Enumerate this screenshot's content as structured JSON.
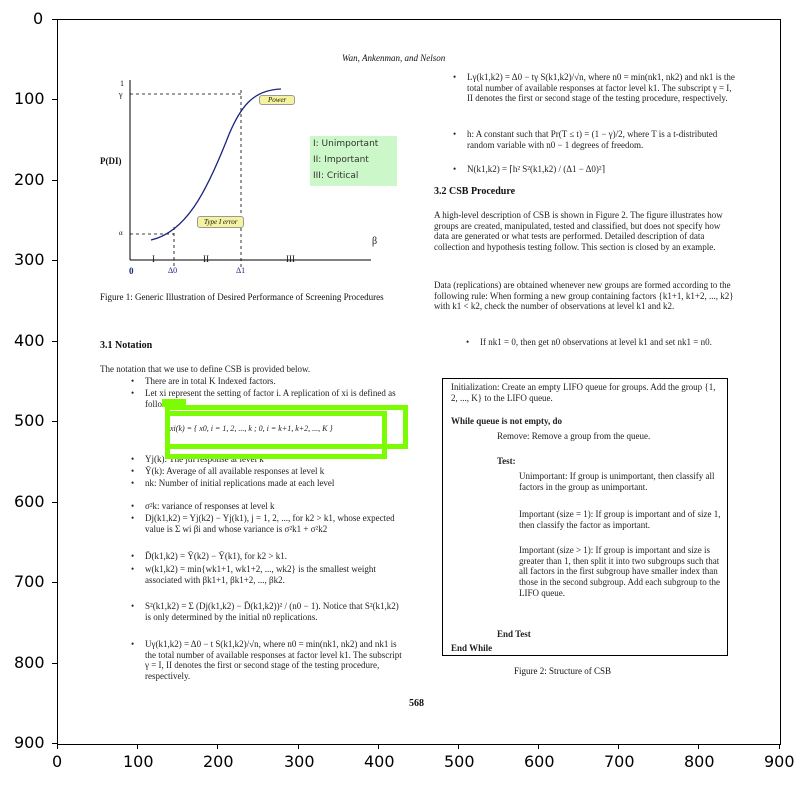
{
  "figure": {
    "running_header": "Wan, Ankenman, and Nelson",
    "page_number": "568",
    "chart_labels": {
      "y_axis": "P(DI)",
      "y_top": "1",
      "y_gamma": "γ",
      "y_alpha": "α",
      "x_axis": "β",
      "x_zero": "0",
      "delta0": "Δ0",
      "delta1": "Δ1",
      "region_I": "I",
      "region_II": "II",
      "region_III": "III",
      "power_label": "Power",
      "type1_label": "Type I error"
    },
    "legend": {
      "item1": "I: Unimportant",
      "item2": "II: Important",
      "item3": "III: Critical"
    },
    "figure1_caption": "Figure 1: Generic Illustration of Desired Performance of Screening Procedures",
    "section_31": "3.1 Notation",
    "notation_intro": "The notation that we use to define CSB is provided below.",
    "notation_items": [
      "There are in total K Indexed factors.",
      "Let xi represent the setting of factor i. A replication of xi is defined as follows:",
      "Yj(k): The jth response at level k",
      "Ȳ(k): Average of all available responses at level k",
      "nk: Number of initial replications made at each level",
      "σ²k: variance of responses at level k",
      "Dj(k1,k2) = Yj(k2) − Yj(k1), j = 1, 2, ..., for k2 > k1, whose expected value is Σ wi βi and whose variance is σ²k1 + σ²k2",
      "D̄(k1,k2) = Ȳ(k2) − Ȳ(k1), for k2 > k1.",
      "w(k1,k2) = min{wk1+1, wk1+2, ..., wk2} is the smallest weight associated with βk1+1, βk1+2, ..., βk2.",
      "S²(k1,k2) = Σ (Dj(k1,k2) − D̄(k1,k2))² / (n0 − 1). Notice that S²(k1,k2) is only determined by the initial n0 replications.",
      "Uγ(k1,k2) = Δ0 − t S(k1,k2)/√n, where n0 = min(nk1, nk2) and nk1 is the total number of available responses at factor level k1. The subscript γ = I, II denotes the first or second stage of the testing procedure, respectively."
    ],
    "equation_label": "xi(k) = { x0,  i = 1, 2, ..., k ;  0,  i = k+1, k+2, ..., K }",
    "right_items": [
      "Lγ(k1,k2) = Δ0 − tγ S(k1,k2)/√n, where n0 = min(nk1, nk2) and nk1 is the total number of available responses at factor level k1. The subscript γ = I, II denotes the first or second stage of the testing procedure, respectively.",
      "h: A constant such that Pr(T ≤ t) = (1 − γ)/2, where T is a t-distributed random variable with n0 − 1 degrees of freedom.",
      "N(k1,k2) = ⌈h² S²(k1,k2) / (Δ1 − Δ0)²⌉"
    ],
    "section_32": "3.2 CSB Procedure",
    "procedure_para1": "A high-level description of CSB is shown in Figure 2. The figure illustrates how groups are created, manipulated, tested and classified, but does not specify how data are generated or what tests are performed. Detailed description of data collection and hypothesis testing follow. This section is closed by an example.",
    "procedure_para2": "Data (replications) are obtained whenever new groups are formed according to the following rule: When forming a new group containing factors {k1+1, k1+2, ..., k2} with k1 < k2, check the number of observations at level k1 and k2.",
    "procedure_item": "If nk1 = 0, then get n0 observations at level k1 and set nk1 = n0.",
    "fig2": {
      "init": "Initialization: Create an empty LIFO queue for groups. Add the group {1, 2, ..., K} to the LIFO queue.",
      "while": "While queue is not empty, do",
      "remove": "Remove: Remove a group from the queue.",
      "test": "Test:",
      "unimportant": "Unimportant: If group is unimportant, then classify all factors in the group as unimportant.",
      "important1": "Important (size = 1): If group is important and of size 1, then classify the factor as important.",
      "important2": "Important (size > 1): If group is important and size is greater than 1, then split it into two subgroups such that all factors in the first subgroup have smaller index than those in the second subgroup. Add each subgroup to the LIFO queue.",
      "end_test": "End Test",
      "end_while": "End While",
      "caption": "Figure 2: Structure of CSB"
    }
  },
  "plot_axes": {
    "x_ticks": [
      "0",
      "100",
      "200",
      "300",
      "400",
      "500",
      "600",
      "700",
      "800",
      "900"
    ],
    "y_ticks": [
      "0",
      "100",
      "200",
      "300",
      "400",
      "500",
      "600",
      "700",
      "800",
      "900"
    ]
  },
  "colors": {
    "highlight": "#7CFC00",
    "legend_bg": "#ccf7c8",
    "curve": "#1a237e",
    "label_bg": "#f5f2a0"
  }
}
